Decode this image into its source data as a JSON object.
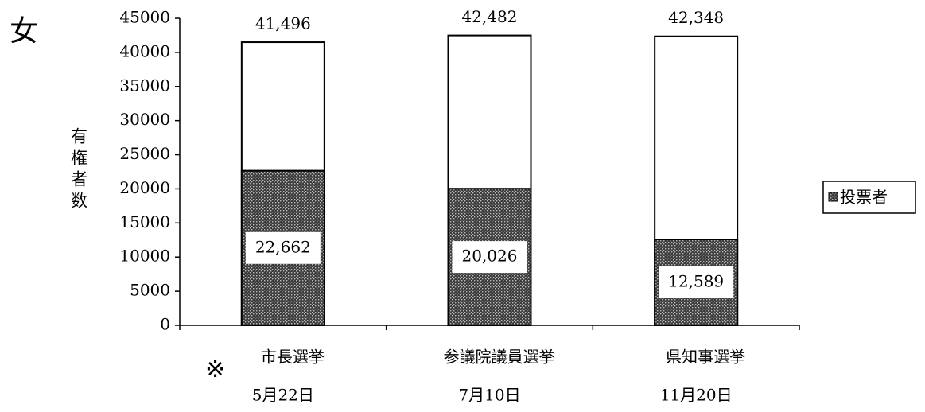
{
  "chart_data": {
    "type": "bar",
    "title": "女",
    "y_label": "有権者数",
    "note_mark": "※",
    "categories": [
      "市長選挙",
      "参議院議員選挙",
      "県知事選挙"
    ],
    "sub_categories": [
      "5月22日",
      "7月10日",
      "11月20日"
    ],
    "series": [
      {
        "color": "#ffffff",
        "values": [
          41496,
          42482,
          42348
        ],
        "value_labels": [
          "41,496",
          "42,482",
          "42,348"
        ]
      },
      {
        "name": "投票者",
        "color": "#3c3c3c",
        "values": [
          22662,
          20026,
          12589
        ],
        "value_labels": [
          "22,662",
          "20,026",
          "12,589"
        ]
      }
    ],
    "ylim": [
      0,
      45000
    ],
    "yticks": [
      0,
      5000,
      10000,
      15000,
      20000,
      25000,
      30000,
      35000,
      40000,
      45000
    ],
    "legend": "right"
  }
}
